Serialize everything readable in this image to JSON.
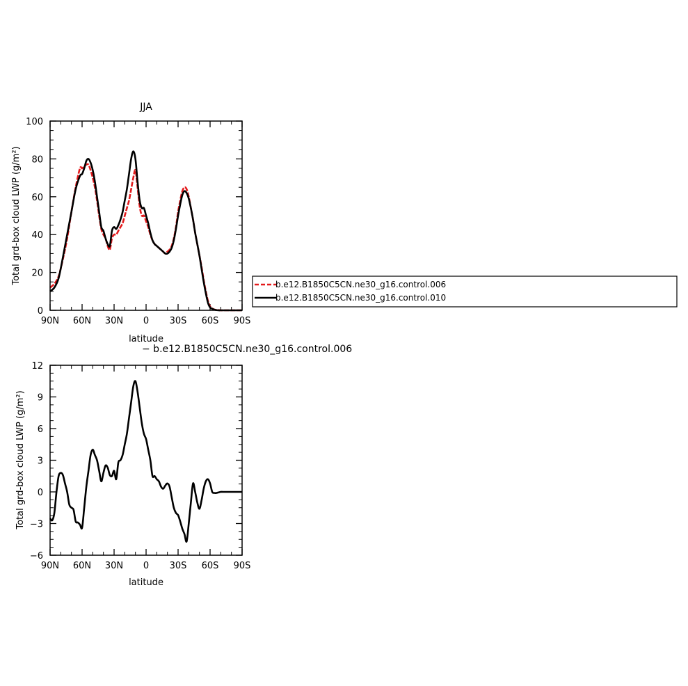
{
  "chart_data": [
    {
      "type": "line",
      "title": "JJA",
      "xlabel": "latitude",
      "ylabel": "Total grd-box cloud LWP (g/m²)",
      "xlim": [
        90,
        -90
      ],
      "ylim": [
        0,
        100
      ],
      "xticks": [
        90,
        60,
        30,
        0,
        -30,
        -60,
        -90
      ],
      "xtick_labels": [
        "90N",
        "60N",
        "30N",
        "0",
        "30S",
        "60S",
        "90S"
      ],
      "yticks": [
        0,
        20,
        40,
        60,
        80,
        100
      ],
      "ytick_labels": [
        "0",
        "20",
        "40",
        "60",
        "80",
        "100"
      ],
      "legend_position": "right",
      "series": [
        {
          "name": "b.e12.B1850C5CN.ne30_g16.control.006",
          "color": "#e31a1c",
          "dashed": true,
          "x": [
            90,
            86,
            82,
            78,
            74,
            70,
            66,
            62,
            60,
            58,
            56,
            54,
            52,
            50,
            48,
            46,
            44,
            42,
            40,
            38,
            36,
            34,
            32,
            30,
            28,
            26,
            24,
            22,
            20,
            18,
            16,
            14,
            12,
            10,
            8,
            6,
            4,
            2,
            0,
            -2,
            -4,
            -6,
            -8,
            -10,
            -12,
            -14,
            -16,
            -18,
            -20,
            -22,
            -24,
            -26,
            -28,
            -30,
            -32,
            -34,
            -36,
            -38,
            -40,
            -42,
            -44,
            -46,
            -48,
            -50,
            -52,
            -54,
            -56,
            -58,
            -60,
            -62,
            -64,
            -66,
            -68,
            -70,
            -72,
            -75,
            -80,
            -85,
            -90
          ],
          "y": [
            12,
            14,
            18,
            27,
            38,
            52,
            65,
            75,
            75,
            76,
            77,
            77,
            74,
            70,
            65,
            58,
            50,
            43,
            40,
            38,
            34,
            32,
            38,
            40,
            40,
            42,
            44,
            46,
            50,
            54,
            58,
            64,
            70,
            74,
            65,
            55,
            50,
            50,
            47,
            44,
            40,
            37,
            35,
            34,
            33,
            32,
            31,
            30,
            31,
            32,
            34,
            38,
            44,
            52,
            58,
            63,
            65,
            64,
            60,
            54,
            48,
            41,
            35,
            29,
            23,
            16,
            10,
            5,
            2,
            1,
            0.4,
            0.2,
            0.1,
            0,
            0,
            0,
            0,
            0,
            0
          ]
        },
        {
          "name": "b.e12.B1850C5CN.ne30_g16.control.010",
          "color": "#000000",
          "dashed": false,
          "x": [
            90,
            86,
            82,
            78,
            74,
            70,
            66,
            62,
            60,
            58,
            56,
            54,
            52,
            50,
            48,
            46,
            44,
            42,
            40,
            38,
            36,
            34,
            32,
            30,
            28,
            26,
            24,
            22,
            20,
            18,
            16,
            14,
            12,
            10,
            8,
            6,
            4,
            2,
            0,
            -2,
            -4,
            -6,
            -8,
            -10,
            -12,
            -14,
            -16,
            -18,
            -20,
            -22,
            -24,
            -26,
            -28,
            -30,
            -32,
            -34,
            -36,
            -38,
            -40,
            -42,
            -44,
            -46,
            -48,
            -50,
            -52,
            -54,
            -56,
            -58,
            -60,
            -62,
            -64,
            -66,
            -68,
            -70,
            -72,
            -75,
            -80,
            -85,
            -90
          ],
          "y": [
            10,
            12,
            17,
            28,
            40,
            52,
            64,
            71,
            72,
            75,
            79,
            80,
            78,
            74,
            68,
            60,
            52,
            44,
            42,
            38,
            35,
            34,
            42,
            44,
            43,
            45,
            48,
            52,
            58,
            64,
            72,
            80,
            84,
            80,
            68,
            58,
            54,
            54,
            50,
            46,
            41,
            37,
            35,
            34,
            33,
            32,
            31,
            30,
            30,
            31,
            33,
            37,
            43,
            50,
            56,
            61,
            63,
            62,
            59,
            54,
            48,
            41,
            35,
            29,
            22,
            15,
            9,
            4,
            1.5,
            0.8,
            0.3,
            0.1,
            0,
            0,
            0,
            0,
            0,
            0,
            0
          ]
        }
      ]
    },
    {
      "type": "line",
      "title": "− b.e12.B1850C5CN.ne30_g16.control.006",
      "xlabel": "latitude",
      "ylabel": "Total grd-box cloud LWP (g/m²)",
      "xlim": [
        90,
        -90
      ],
      "ylim": [
        -6,
        12
      ],
      "xticks": [
        90,
        60,
        30,
        0,
        -30,
        -60,
        -90
      ],
      "xtick_labels": [
        "90N",
        "60N",
        "30N",
        "0",
        "30S",
        "60S",
        "90S"
      ],
      "yticks": [
        -6,
        -3,
        0,
        3,
        6,
        9,
        12
      ],
      "ytick_labels": [
        "−6",
        "−3",
        "0",
        "3",
        "6",
        "9",
        "12"
      ],
      "series": [
        {
          "color": "#000000",
          "dashed": false,
          "x": [
            90,
            88,
            86,
            84,
            82,
            80,
            78,
            76,
            74,
            72,
            70,
            68,
            66,
            64,
            62,
            60,
            58,
            56,
            54,
            52,
            50,
            48,
            46,
            44,
            42,
            40,
            38,
            36,
            34,
            32,
            30,
            28,
            26,
            24,
            22,
            20,
            18,
            16,
            14,
            12,
            10,
            8,
            6,
            4,
            2,
            0,
            -2,
            -4,
            -6,
            -8,
            -10,
            -12,
            -14,
            -16,
            -18,
            -20,
            -22,
            -24,
            -26,
            -28,
            -30,
            -32,
            -34,
            -36,
            -38,
            -40,
            -42,
            -44,
            -46,
            -48,
            -50,
            -52,
            -54,
            -56,
            -58,
            -60,
            -62,
            -64,
            -66,
            -68,
            -70,
            -72,
            -75,
            -80,
            -85,
            -90
          ],
          "y": [
            -2.5,
            -2.7,
            -2.0,
            0.0,
            1.5,
            1.8,
            1.6,
            0.8,
            0.0,
            -1.2,
            -1.5,
            -1.7,
            -2.8,
            -2.9,
            -3.1,
            -3.4,
            -1.5,
            0.5,
            2.0,
            3.5,
            4.0,
            3.5,
            3.0,
            2.0,
            1.0,
            1.8,
            2.5,
            2.3,
            1.6,
            1.5,
            2.0,
            1.2,
            2.8,
            3.0,
            3.5,
            4.5,
            5.5,
            7.0,
            8.5,
            10.0,
            10.5,
            9.5,
            8.0,
            6.5,
            5.5,
            5.0,
            4.0,
            3.0,
            1.5,
            1.5,
            1.2,
            1.0,
            0.5,
            0.3,
            0.6,
            0.8,
            0.5,
            -0.5,
            -1.5,
            -2.0,
            -2.2,
            -2.8,
            -3.5,
            -4.0,
            -4.7,
            -3.0,
            -1.0,
            0.8,
            0.0,
            -1.0,
            -1.6,
            -0.8,
            0.3,
            1.0,
            1.2,
            0.8,
            0.0,
            -0.1,
            -0.1,
            -0.05,
            0.0,
            0.0,
            0.0,
            0.0,
            0.0,
            0.0
          ]
        }
      ]
    }
  ]
}
